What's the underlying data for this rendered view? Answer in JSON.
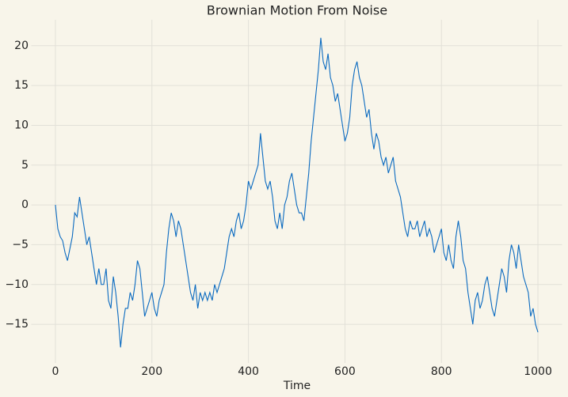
{
  "chart_data": {
    "type": "line",
    "title": "Brownian Motion From Noise",
    "x_label": "Time",
    "x": [
      0,
      5,
      10,
      15,
      20,
      25,
      30,
      35,
      40,
      45,
      50,
      55,
      60,
      65,
      70,
      75,
      80,
      85,
      90,
      95,
      100,
      105,
      110,
      115,
      120,
      125,
      130,
      135,
      140,
      145,
      150,
      155,
      160,
      165,
      170,
      175,
      180,
      185,
      190,
      195,
      200,
      205,
      210,
      215,
      220,
      225,
      230,
      235,
      240,
      245,
      250,
      255,
      260,
      265,
      270,
      275,
      280,
      285,
      290,
      295,
      300,
      305,
      310,
      315,
      320,
      325,
      330,
      335,
      340,
      345,
      350,
      355,
      360,
      365,
      370,
      375,
      380,
      385,
      390,
      395,
      400,
      405,
      410,
      415,
      420,
      425,
      430,
      435,
      440,
      445,
      450,
      455,
      460,
      465,
      470,
      475,
      480,
      485,
      490,
      495,
      500,
      505,
      510,
      515,
      520,
      525,
      530,
      535,
      540,
      545,
      550,
      555,
      560,
      565,
      570,
      575,
      580,
      585,
      590,
      595,
      600,
      605,
      610,
      615,
      620,
      625,
      630,
      635,
      640,
      645,
      650,
      655,
      660,
      665,
      670,
      675,
      680,
      685,
      690,
      695,
      700,
      705,
      710,
      715,
      720,
      725,
      730,
      735,
      740,
      745,
      750,
      755,
      760,
      765,
      770,
      775,
      780,
      785,
      790,
      795,
      800,
      805,
      810,
      815,
      820,
      825,
      830,
      835,
      840,
      845,
      850,
      855,
      860,
      865,
      870,
      875,
      880,
      885,
      890,
      895,
      900,
      905,
      910,
      915,
      920,
      925,
      930,
      935,
      940,
      945,
      950,
      955,
      960,
      965,
      970,
      975,
      980,
      985,
      990,
      995,
      1000
    ],
    "series": [
      {
        "color": "#0a6ac0",
        "values": [
          0,
          -3,
          -4,
          -4.5,
          -6,
          -7,
          -5.5,
          -4,
          -1,
          -1.5,
          1,
          -1,
          -3,
          -5,
          -4,
          -6,
          -8,
          -10,
          -8,
          -10,
          -10,
          -8,
          -12,
          -13,
          -9,
          -11,
          -14,
          -17.9,
          -15,
          -13,
          -13,
          -11,
          -12,
          -10,
          -7,
          -8,
          -11,
          -14,
          -13,
          -12,
          -11,
          -13,
          -14,
          -12,
          -11,
          -10,
          -6,
          -3,
          -1,
          -2,
          -4,
          -2,
          -3,
          -5,
          -7,
          -9,
          -11,
          -12,
          -10,
          -13,
          -11,
          -12,
          -11,
          -12,
          -11,
          -12,
          -10,
          -11,
          -10,
          -9,
          -8,
          -6,
          -4,
          -3,
          -4,
          -2,
          -1,
          -3,
          -2,
          0,
          3,
          2,
          3,
          4,
          5,
          9,
          6,
          3,
          2,
          3,
          1,
          -2,
          -3,
          -1,
          -3,
          0,
          1,
          3,
          4,
          2,
          0,
          -1,
          -1,
          -2,
          1,
          4,
          8,
          11,
          14,
          17,
          21,
          18,
          17,
          19,
          16,
          15,
          13,
          14,
          12,
          10,
          8,
          9,
          11,
          15,
          17,
          18,
          16,
          15,
          13,
          11,
          12,
          9,
          7,
          9,
          8,
          6,
          5,
          6,
          4,
          5,
          6,
          3,
          2,
          1,
          -1,
          -3,
          -4,
          -2,
          -3,
          -3,
          -2,
          -4,
          -3,
          -2,
          -4,
          -3,
          -4,
          -6,
          -5,
          -4,
          -3,
          -6,
          -7,
          -5,
          -7,
          -8,
          -4,
          -2,
          -4,
          -7,
          -8,
          -11,
          -13,
          -15,
          -12,
          -11,
          -13,
          -12,
          -10,
          -9,
          -11,
          -13,
          -14,
          -12,
          -10,
          -8,
          -9,
          -11,
          -7,
          -5,
          -6,
          -8,
          -5,
          -7,
          -9,
          -10,
          -11,
          -14,
          -13,
          -15,
          -16
        ]
      }
    ],
    "xlim": [
      -50,
      1050
    ],
    "ylim": [
      -19.86,
      23.26
    ],
    "xticks": [
      0,
      200,
      400,
      600,
      800,
      1000
    ],
    "yticks": [
      {
        "value": -15,
        "label": "−15"
      },
      {
        "value": -10,
        "label": "−10"
      },
      {
        "value": -5,
        "label": "−5"
      },
      0,
      5,
      10,
      15,
      20
    ],
    "grid": true
  }
}
